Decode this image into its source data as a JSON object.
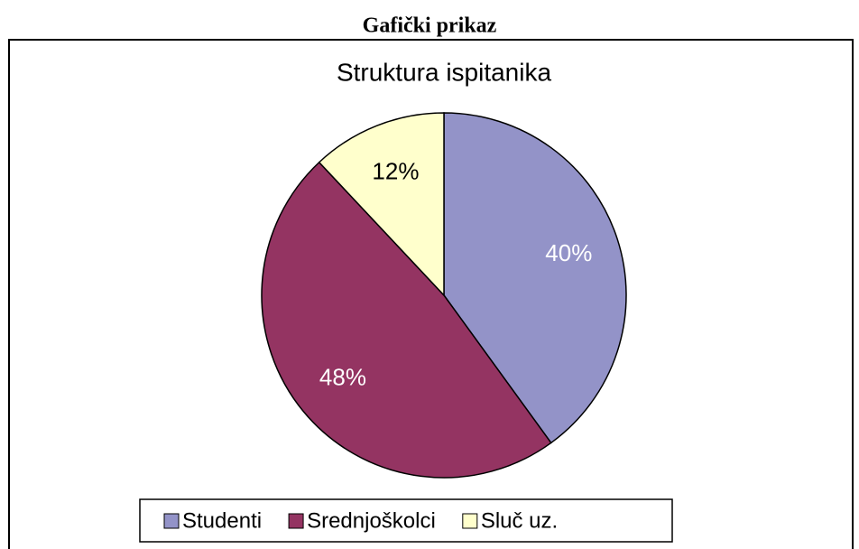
{
  "heading": "Gafički prikaz",
  "chart_data": {
    "type": "pie",
    "title": "Struktura ispitanika",
    "categories": [
      "Studenti",
      "Srednjoškolci",
      "Sluč uz."
    ],
    "values": [
      40,
      48,
      12
    ],
    "value_labels": [
      "40%",
      "48%",
      "12%"
    ],
    "colors": [
      "#9393c8",
      "#943462",
      "#ffffcc"
    ],
    "label_colors": [
      "#ffffff",
      "#ffffff",
      "#000000"
    ],
    "legend": "bottom"
  }
}
